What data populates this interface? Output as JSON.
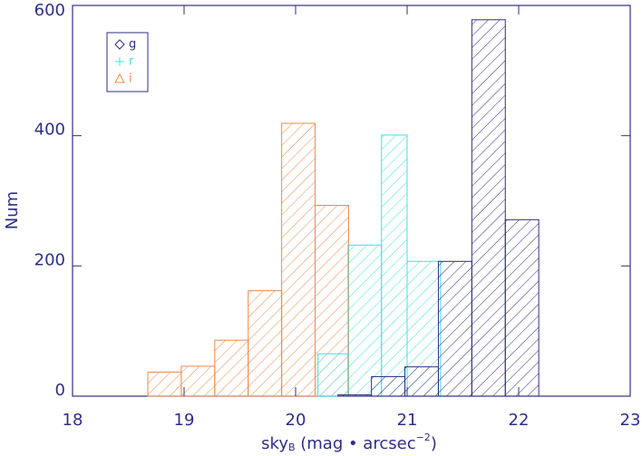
{
  "chart_data": {
    "type": "histogram",
    "xlabel": {
      "main": "sky",
      "sub": "B",
      "mid": " (mag • arcsec",
      "sup": "−2",
      "end": ")"
    },
    "ylabel": "Num",
    "xlim": [
      18,
      23
    ],
    "xticks": [
      18,
      19,
      20,
      21,
      22,
      23
    ],
    "ylim": [
      0,
      600
    ],
    "yticks": [
      0,
      200,
      400,
      600
    ],
    "legend": "top-left",
    "series": [
      {
        "name": "g",
        "color": "#2e2e86",
        "bins": [
          20.38,
          20.68,
          20.98,
          21.28,
          21.58,
          21.88,
          22.18
        ],
        "values": [
          2,
          30,
          45,
          207,
          578,
          271
        ]
      },
      {
        "name": "r",
        "color": "#44e0e4",
        "bins": [
          20.2,
          20.47,
          20.77,
          21.0,
          21.3
        ],
        "values": [
          65,
          232,
          401,
          207
        ]
      },
      {
        "name": "i",
        "color": "#f0894a",
        "bins": [
          18.675,
          18.975,
          19.275,
          19.575,
          19.875,
          20.175,
          20.475
        ],
        "values": [
          37,
          46,
          86,
          162,
          419,
          293
        ]
      }
    ]
  }
}
